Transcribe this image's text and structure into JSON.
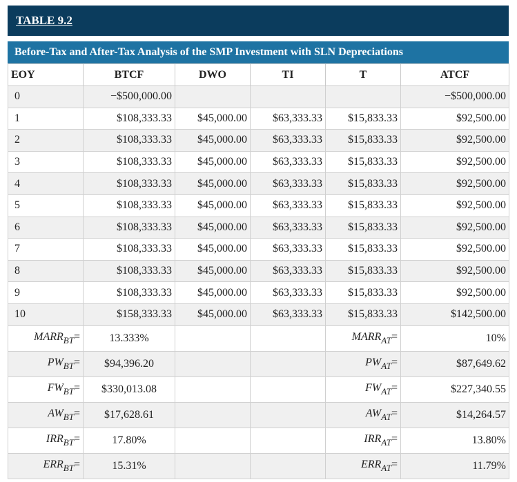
{
  "table_label": "TABLE 9.2",
  "caption": "Before-Tax and After-Tax Analysis of the SMP Investment with SLN Depreciations",
  "columns": [
    "EOY",
    "BTCF",
    "DWO",
    "TI",
    "T",
    "ATCF"
  ],
  "rows": [
    {
      "eoy": "0",
      "btcf": "−$500,000.00",
      "dwo": "",
      "ti": "",
      "t": "",
      "atcf": "−$500,000.00"
    },
    {
      "eoy": "1",
      "btcf": "$108,333.33",
      "dwo": "$45,000.00",
      "ti": "$63,333.33",
      "t": "$15,833.33",
      "atcf": "$92,500.00"
    },
    {
      "eoy": "2",
      "btcf": "$108,333.33",
      "dwo": "$45,000.00",
      "ti": "$63,333.33",
      "t": "$15,833.33",
      "atcf": "$92,500.00"
    },
    {
      "eoy": "3",
      "btcf": "$108,333.33",
      "dwo": "$45,000.00",
      "ti": "$63,333.33",
      "t": "$15,833.33",
      "atcf": "$92,500.00"
    },
    {
      "eoy": "4",
      "btcf": "$108,333.33",
      "dwo": "$45,000.00",
      "ti": "$63,333.33",
      "t": "$15,833.33",
      "atcf": "$92,500.00"
    },
    {
      "eoy": "5",
      "btcf": "$108,333.33",
      "dwo": "$45,000.00",
      "ti": "$63,333.33",
      "t": "$15,833.33",
      "atcf": "$92,500.00"
    },
    {
      "eoy": "6",
      "btcf": "$108,333.33",
      "dwo": "$45,000.00",
      "ti": "$63,333.33",
      "t": "$15,833.33",
      "atcf": "$92,500.00"
    },
    {
      "eoy": "7",
      "btcf": "$108,333.33",
      "dwo": "$45,000.00",
      "ti": "$63,333.33",
      "t": "$15,833.33",
      "atcf": "$92,500.00"
    },
    {
      "eoy": "8",
      "btcf": "$108,333.33",
      "dwo": "$45,000.00",
      "ti": "$63,333.33",
      "t": "$15,833.33",
      "atcf": "$92,500.00"
    },
    {
      "eoy": "9",
      "btcf": "$108,333.33",
      "dwo": "$45,000.00",
      "ti": "$63,333.33",
      "t": "$15,833.33",
      "atcf": "$92,500.00"
    },
    {
      "eoy": "10",
      "btcf": "$158,333.33",
      "dwo": "$45,000.00",
      "ti": "$63,333.33",
      "t": "$15,833.33",
      "atcf": "$142,500.00"
    }
  ],
  "summary": [
    {
      "bt_label": "MARR",
      "bt_value": "13.333%",
      "at_label": "MARR",
      "at_value": "10%"
    },
    {
      "bt_label": "PW",
      "bt_value": "$94,396.20",
      "at_label": "PW",
      "at_value": "$87,649.62"
    },
    {
      "bt_label": "FW",
      "bt_value": "$330,013.08",
      "at_label": "FW",
      "at_value": "$227,340.55"
    },
    {
      "bt_label": "AW",
      "bt_value": "$17,628.61",
      "at_label": "AW",
      "at_value": "$14,264.57"
    },
    {
      "bt_label": "IRR",
      "bt_value": "17.80%",
      "at_label": "IRR",
      "at_value": "13.80%"
    },
    {
      "bt_label": "ERR",
      "bt_value": "15.31%",
      "at_label": "ERR",
      "at_value": "11.79%"
    }
  ],
  "bt_subscript": "BT",
  "at_subscript": "AT",
  "equals": "="
}
